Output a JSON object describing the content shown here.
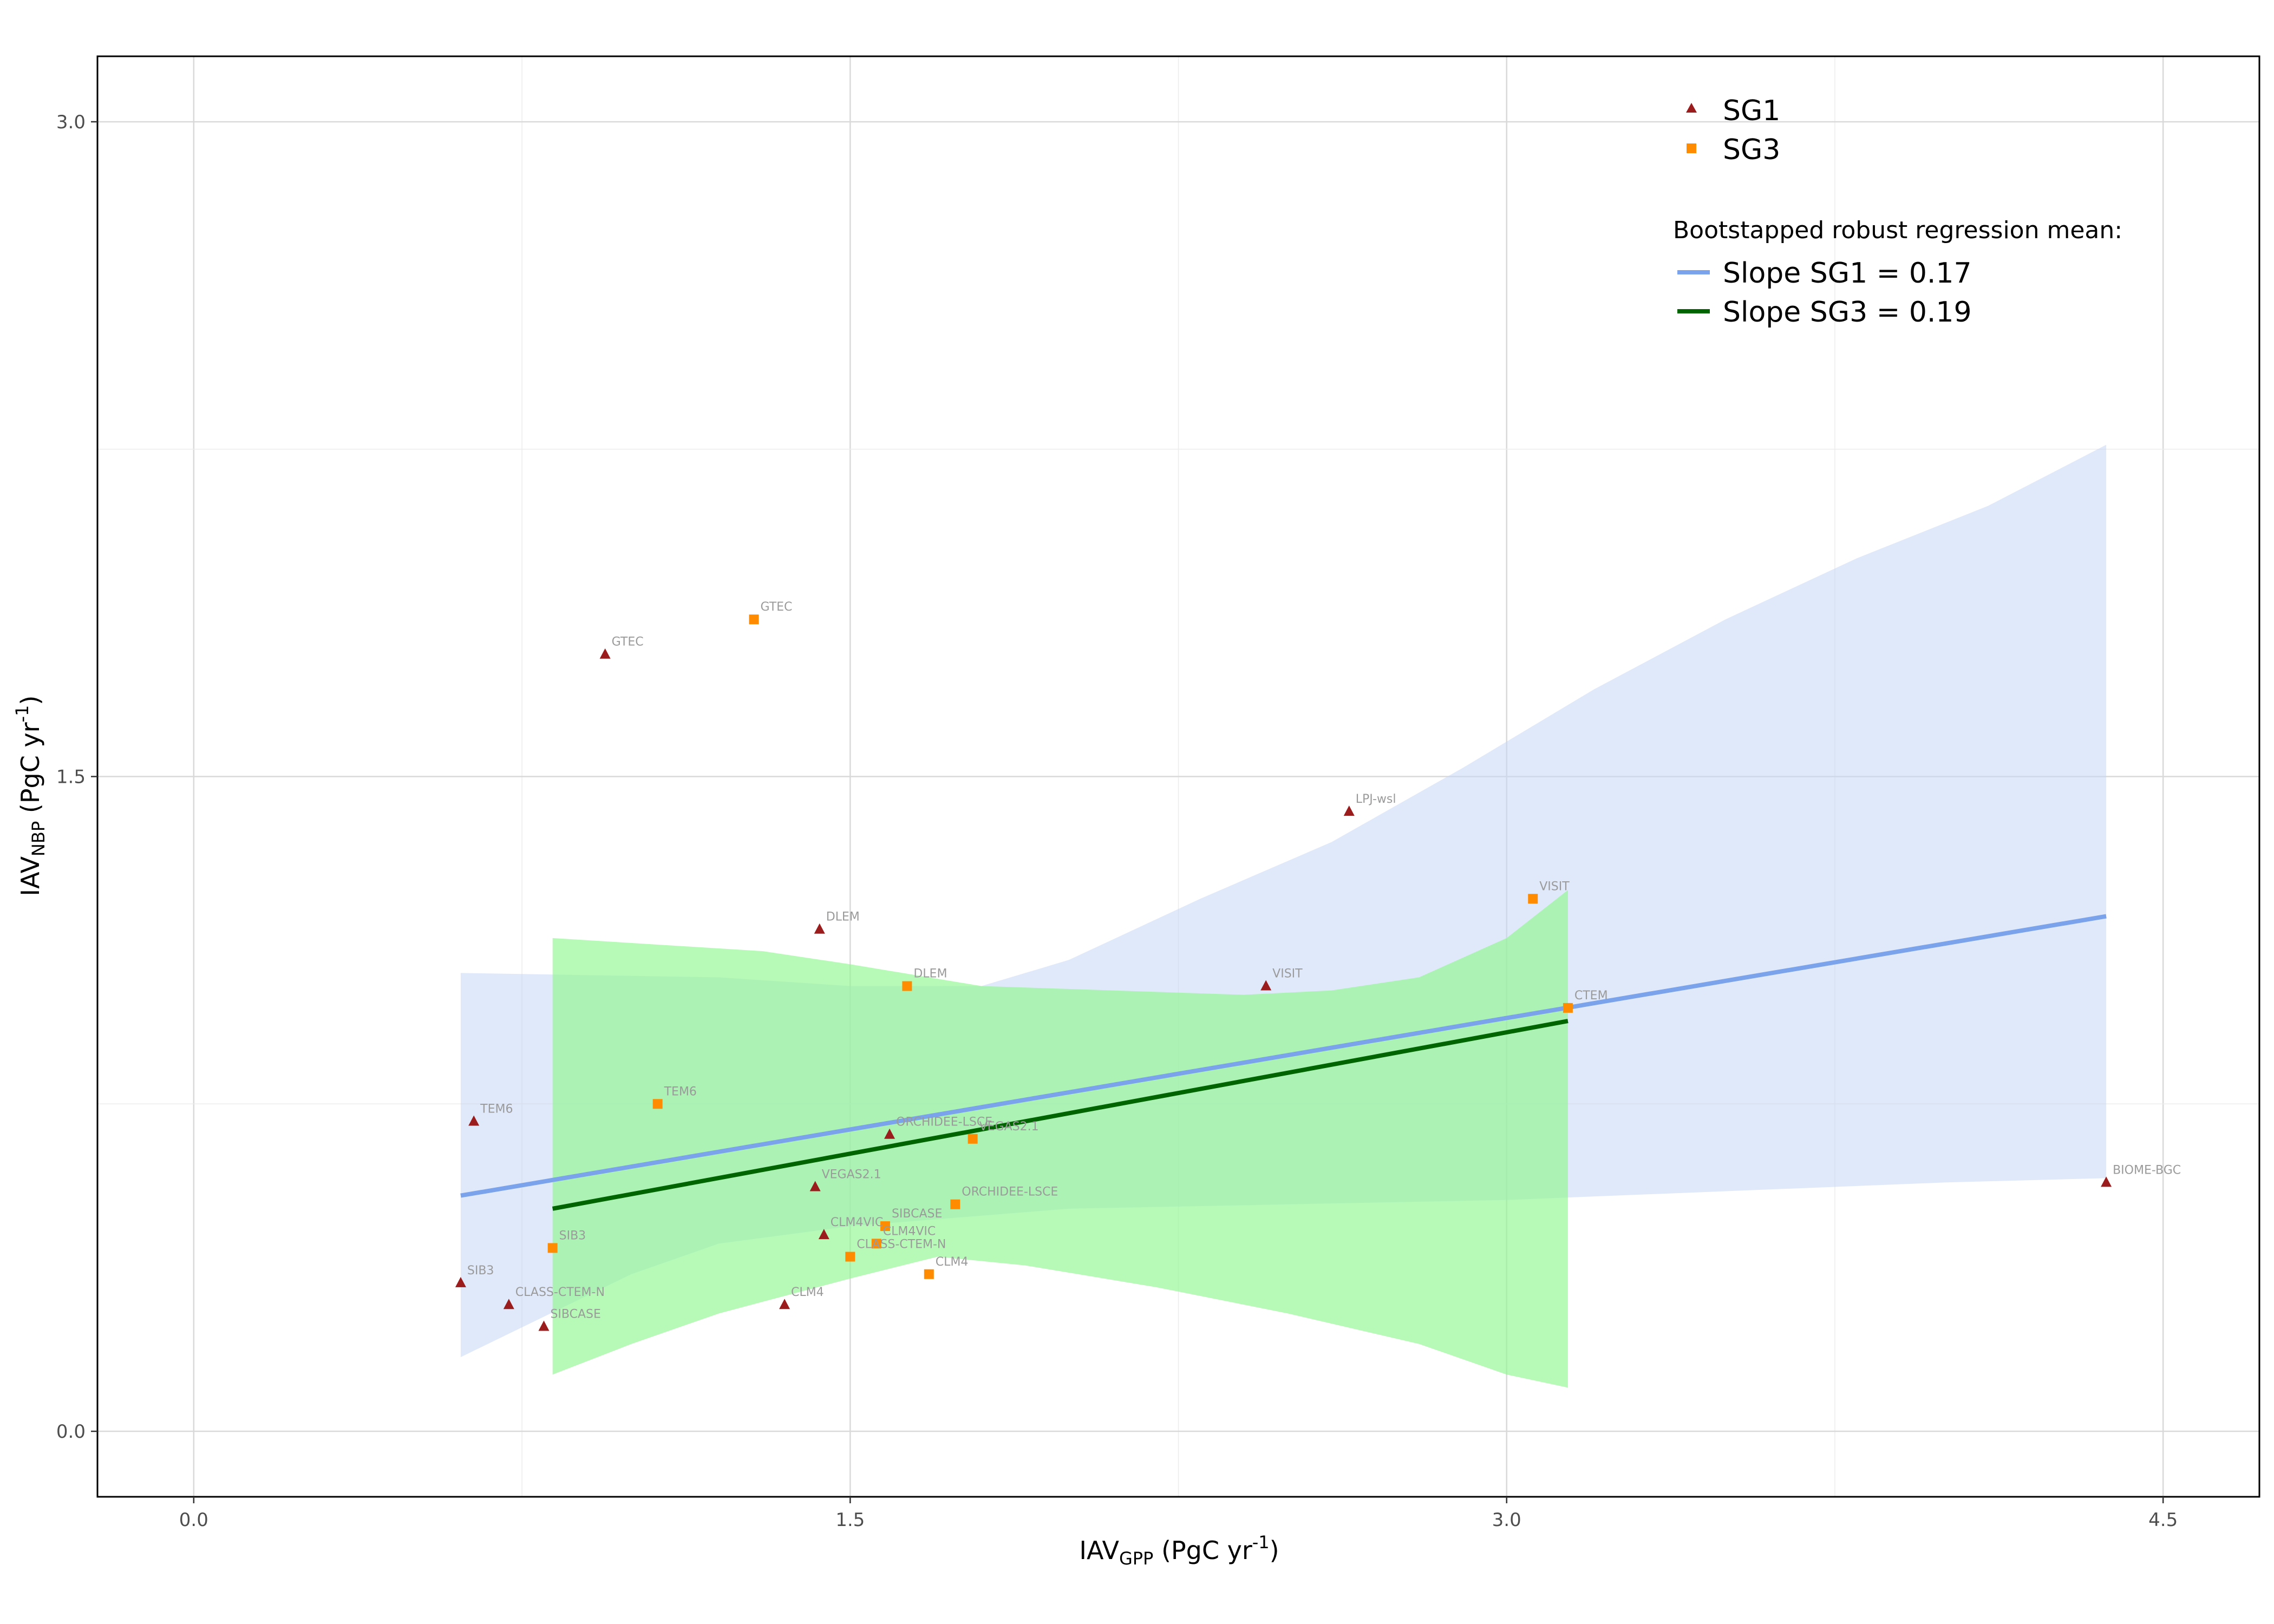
{
  "chart_data": {
    "type": "scatter",
    "xlabel": "IAV",
    "xlabel_sub": "GPP",
    "xlabel_unit_pre": " (PgC yr",
    "xlabel_unit_sup": "-1",
    "xlabel_unit_post": ")",
    "ylabel": "IAV",
    "ylabel_sub": "NBP",
    "ylabel_unit_pre": " (PgC yr",
    "ylabel_unit_sup": "-1",
    "ylabel_unit_post": ")",
    "xlim": [
      -0.22,
      4.72
    ],
    "ylim": [
      -0.15,
      3.15
    ],
    "xticks": [
      0.0,
      1.5,
      3.0,
      4.5
    ],
    "xtick_labels": [
      "0.0",
      "1.5",
      "3.0",
      "4.5"
    ],
    "yticks": [
      0.0,
      1.5,
      3.0
    ],
    "ytick_labels": [
      "0.0",
      "1.5",
      "3.0"
    ],
    "grid": true,
    "legend_placement": "top-right",
    "series": [
      {
        "name": "SG1",
        "marker": "triangle",
        "color": "#9b1c1c",
        "points": [
          {
            "label": "GTEC",
            "x": 0.94,
            "y": 1.78
          },
          {
            "label": "LPJ-wsl",
            "x": 2.64,
            "y": 1.42
          },
          {
            "label": "DLEM",
            "x": 1.43,
            "y": 1.15
          },
          {
            "label": "VISIT",
            "x": 2.45,
            "y": 1.02
          },
          {
            "label": "TEM6",
            "x": 0.64,
            "y": 0.71
          },
          {
            "label": "ORCHIDEE-LSCE",
            "x": 1.59,
            "y": 0.68
          },
          {
            "label": "VEGAS2.1",
            "x": 1.42,
            "y": 0.56
          },
          {
            "label": "CLM4VIC",
            "x": 1.44,
            "y": 0.45
          },
          {
            "label": "SIB3",
            "x": 0.61,
            "y": 0.34
          },
          {
            "label": "CLASS-CTEM-N",
            "x": 0.72,
            "y": 0.29
          },
          {
            "label": "SIBCASE",
            "x": 0.8,
            "y": 0.24
          },
          {
            "label": "CLM4",
            "x": 1.35,
            "y": 0.29
          },
          {
            "label": "BIOME-BGC",
            "x": 4.37,
            "y": 0.57
          }
        ]
      },
      {
        "name": "SG3",
        "marker": "square",
        "color": "#ff8c00",
        "points": [
          {
            "label": "GTEC",
            "x": 1.28,
            "y": 1.86
          },
          {
            "label": "DLEM",
            "x": 1.63,
            "y": 1.02
          },
          {
            "label": "VISIT",
            "x": 3.06,
            "y": 1.22
          },
          {
            "label": "CTEM",
            "x": 3.14,
            "y": 0.97
          },
          {
            "label": "TEM6",
            "x": 1.06,
            "y": 0.75
          },
          {
            "label": "VEGAS2.1",
            "x": 1.78,
            "y": 0.67
          },
          {
            "label": "ORCHIDEE-LSCE",
            "x": 1.74,
            "y": 0.52
          },
          {
            "label": "SIBCASE",
            "x": 1.58,
            "y": 0.47
          },
          {
            "label": "CLM4VIC",
            "x": 1.56,
            "y": 0.43
          },
          {
            "label": "CLASS-CTEM-N",
            "x": 1.5,
            "y": 0.4
          },
          {
            "label": "CLM4",
            "x": 1.68,
            "y": 0.36
          },
          {
            "label": "SIB3",
            "x": 0.82,
            "y": 0.42
          }
        ]
      }
    ],
    "regression_title": "Bootstapped robust regression mean:",
    "regressions": [
      {
        "name": "Slope SG1 = 0.17",
        "color": "#7ba3eb",
        "band_color": "#c6d7f4",
        "line": [
          [
            0.61,
            0.54
          ],
          [
            4.37,
            1.18
          ]
        ],
        "band_upper": [
          [
            0.61,
            1.05
          ],
          [
            1.2,
            1.04
          ],
          [
            1.5,
            1.02
          ],
          [
            1.8,
            1.02
          ],
          [
            2.0,
            1.08
          ],
          [
            2.3,
            1.22
          ],
          [
            2.6,
            1.35
          ],
          [
            2.9,
            1.52
          ],
          [
            3.2,
            1.7
          ],
          [
            3.5,
            1.86
          ],
          [
            3.8,
            2.0
          ],
          [
            4.1,
            2.12
          ],
          [
            4.37,
            2.26
          ]
        ],
        "band_lower": [
          [
            0.61,
            0.17
          ],
          [
            1.0,
            0.36
          ],
          [
            1.2,
            0.43
          ],
          [
            1.5,
            0.47
          ],
          [
            2.0,
            0.51
          ],
          [
            2.5,
            0.52
          ],
          [
            3.0,
            0.53
          ],
          [
            3.5,
            0.55
          ],
          [
            4.0,
            0.57
          ],
          [
            4.37,
            0.58
          ]
        ]
      },
      {
        "name": "Slope SG3 = 0.19",
        "color": "#006400",
        "band_color": "#90f790",
        "line": [
          [
            0.82,
            0.51
          ],
          [
            3.14,
            0.94
          ]
        ],
        "band_upper": [
          [
            0.82,
            1.13
          ],
          [
            1.3,
            1.1
          ],
          [
            1.5,
            1.07
          ],
          [
            1.8,
            1.02
          ],
          [
            2.1,
            1.01
          ],
          [
            2.4,
            1.0
          ],
          [
            2.6,
            1.01
          ],
          [
            2.8,
            1.04
          ],
          [
            3.0,
            1.13
          ],
          [
            3.14,
            1.24
          ]
        ],
        "band_lower": [
          [
            0.82,
            0.13
          ],
          [
            1.0,
            0.2
          ],
          [
            1.2,
            0.27
          ],
          [
            1.5,
            0.35
          ],
          [
            1.7,
            0.4
          ],
          [
            1.9,
            0.38
          ],
          [
            2.2,
            0.33
          ],
          [
            2.5,
            0.27
          ],
          [
            2.8,
            0.2
          ],
          [
            3.0,
            0.13
          ],
          [
            3.14,
            0.1
          ]
        ]
      }
    ]
  }
}
